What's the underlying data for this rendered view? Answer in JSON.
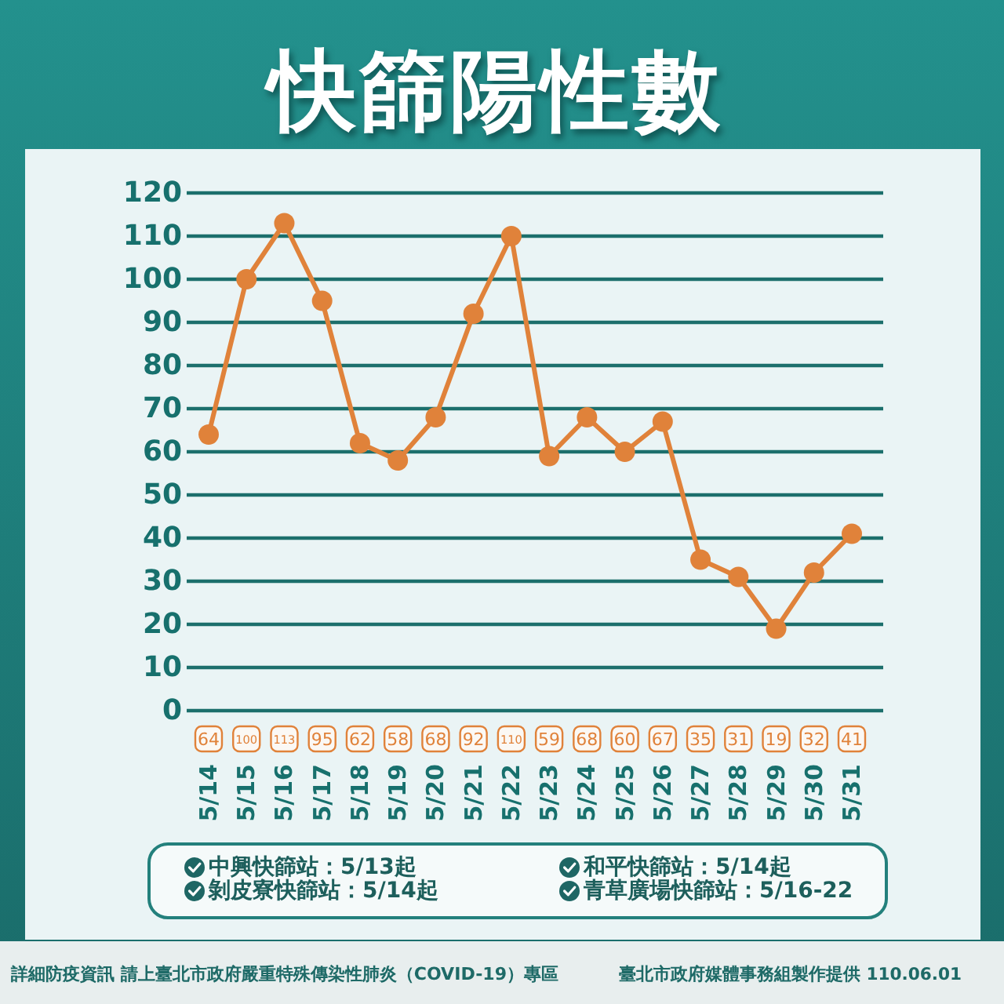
{
  "chart_data": {
    "type": "line",
    "title": "快篩陽性數",
    "categories": [
      "5/14",
      "5/15",
      "5/16",
      "5/17",
      "5/18",
      "5/19",
      "5/20",
      "5/21",
      "5/22",
      "5/23",
      "5/24",
      "5/25",
      "5/26",
      "5/27",
      "5/28",
      "5/29",
      "5/30",
      "5/31"
    ],
    "values": [
      64,
      100,
      113,
      95,
      62,
      58,
      68,
      92,
      110,
      59,
      68,
      60,
      67,
      35,
      31,
      19,
      32,
      41
    ],
    "color": "#e0823a",
    "ylim": [
      0,
      120
    ],
    "yticks": [
      0,
      10,
      20,
      30,
      40,
      50,
      60,
      70,
      80,
      90,
      100,
      110,
      120
    ],
    "grid": "y",
    "marker": "circle",
    "line_style": "solid",
    "data_labels": true,
    "annotations": [
      "中興快篩站：5/13起",
      "和平快篩站：5/14起",
      "剝皮寮快篩站：5/14起",
      "青草廣場快篩站：5/16-22",
      "詳細防疫資訊 請上臺北市政府嚴重特殊傳染性肺炎（COVID-19）專區",
      "臺北市政府媒體事務組製作提供 110.06.01"
    ]
  }
}
